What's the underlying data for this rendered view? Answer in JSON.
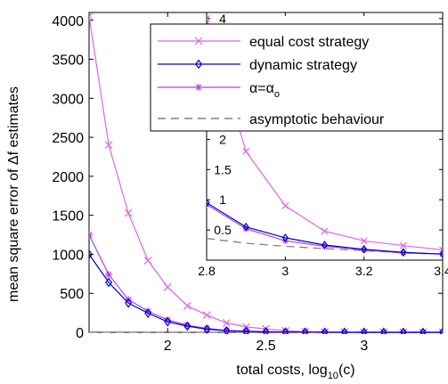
{
  "chart_data": {
    "type": "line",
    "title": "",
    "xlabel": "total costs, log",
    "xlabel_sub": "10",
    "xlabel_tail": "(c)",
    "ylabel_prefix": "mean square error of ",
    "ylabel_delta": "Δ",
    "ylabel_suffix": "f estimates",
    "xlim": [
      1.6,
      3.4
    ],
    "ylim": [
      0,
      4100
    ],
    "xticks": [
      2,
      2.5,
      3
    ],
    "xtick_labels": [
      "2",
      "2.5",
      "3"
    ],
    "yticks": [
      0,
      500,
      1000,
      1500,
      2000,
      2500,
      3000,
      3500,
      4000
    ],
    "ytick_labels": [
      "0",
      "500",
      "1000",
      "1500",
      "2000",
      "2500",
      "3000",
      "3500",
      "4000"
    ],
    "grid": false,
    "legend_position": "top-right",
    "x": [
      1.6,
      1.7,
      1.8,
      1.9,
      2.0,
      2.1,
      2.2,
      2.3,
      2.4,
      2.5,
      2.6,
      2.7,
      2.8,
      2.9,
      3.0,
      3.1,
      3.2,
      3.3,
      3.4
    ],
    "series": [
      {
        "name": "equal cost strategy",
        "color": "#e066e0",
        "marker": "x",
        "values": [
          4050,
          2400,
          1530,
          920,
          580,
          340,
          220,
          120,
          70,
          45,
          20,
          10,
          4,
          1.8,
          0.9,
          0.48,
          0.32,
          0.24,
          0.17
        ]
      },
      {
        "name": "dynamic strategy",
        "color": "#0000c8",
        "marker": "diamond",
        "values": [
          1000,
          640,
          375,
          245,
          135,
          80,
          40,
          20,
          12,
          6,
          3.5,
          2,
          0.95,
          0.55,
          0.37,
          0.25,
          0.18,
          0.13,
          0.1
        ]
      },
      {
        "name_base": "α=α",
        "name_sub": "o",
        "color": "#b040e0",
        "marker": "star",
        "values": [
          1250,
          740,
          420,
          270,
          160,
          90,
          50,
          25,
          14,
          7,
          4,
          2.2,
          0.92,
          0.52,
          0.32,
          0.23,
          0.17,
          0.12,
          0.1
        ]
      },
      {
        "name": "asymptotic behaviour",
        "color": "#808080",
        "style": "dashed",
        "values": [
          3.2,
          2.4,
          1.8,
          1.4,
          1.1,
          0.8,
          0.64,
          0.5,
          0.4,
          0.33,
          0.27,
          0.22,
          0.36,
          0.28,
          0.23,
          0.19,
          0.16,
          0.12,
          0.1
        ]
      }
    ],
    "inset": {
      "xlim": [
        2.8,
        3.4
      ],
      "ylim": [
        0,
        4.1
      ],
      "xticks": [
        2.8,
        3,
        3.2,
        3.4
      ],
      "xtick_labels": [
        "2.8",
        "3",
        "3.2",
        "3.4"
      ],
      "yticks": [
        0.5,
        1,
        1.5,
        2,
        2.5,
        3,
        3.5,
        4
      ],
      "ytick_labels": [
        "0.5",
        "1",
        "1.5",
        "2",
        "2.5",
        "3",
        "3.5",
        "4"
      ]
    }
  }
}
